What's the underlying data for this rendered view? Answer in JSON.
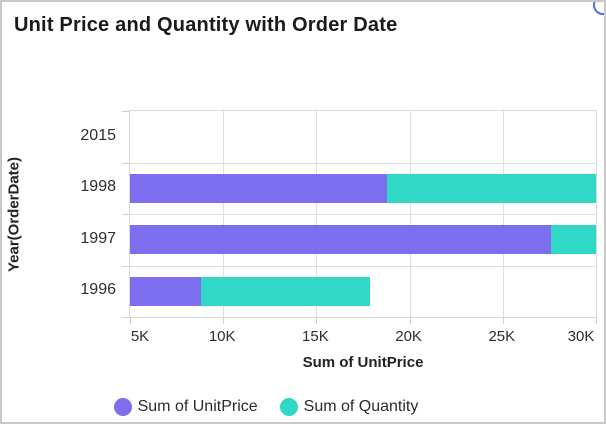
{
  "widget": {
    "title": "Unit Price and Quantity with Order Date"
  },
  "corner_icon": {
    "name": "clipped-circle-badge",
    "color": "#4a6ff0"
  },
  "chart_data": {
    "type": "bar",
    "orientation": "horizontal",
    "stacked": true,
    "title": "Unit Price and Quantity with Order Date",
    "categories": [
      "2015",
      "1998",
      "1997",
      "1996"
    ],
    "series": [
      {
        "name": "Sum of UnitPrice",
        "color": "#7d6ef0",
        "values": [
          0,
          18800,
          27600,
          8800
        ]
      },
      {
        "name": "Sum of Quantity",
        "color": "#2fd9c6",
        "values": [
          0,
          16200,
          25500,
          9100
        ]
      }
    ],
    "xlabel": "Sum of UnitPrice",
    "ylabel": "Year(OrderDate)",
    "x_ticks": [
      "5K",
      "10K",
      "15K",
      "20K",
      "25K",
      "30K"
    ],
    "x_tick_values": [
      5000,
      10000,
      15000,
      20000,
      25000,
      30000
    ],
    "xlim": [
      5000,
      30000
    ],
    "clip_note": "stacked totals above 30K are clipped at the right plot edge",
    "grid": true,
    "legend_position": "bottom"
  }
}
